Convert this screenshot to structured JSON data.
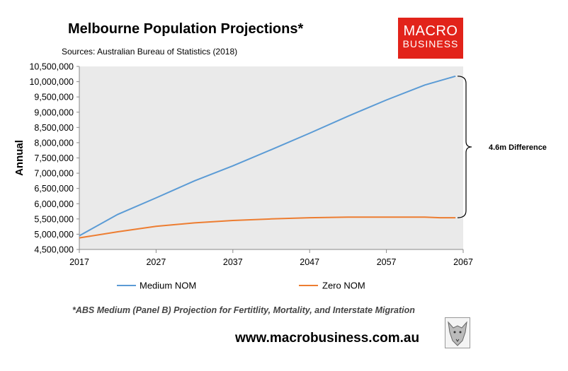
{
  "title": "Melbourne Population Projections*",
  "source": "Sources: Australian Bureau of Statistics (2018)",
  "logo": {
    "line1": "MACRO",
    "line2": "BUSINESS"
  },
  "footnote": "*ABS Medium (Panel B) Projection for Fertitlity, Mortality, and Interstate Migration",
  "url": "www.macrobusiness.com.au",
  "colors": {
    "medium": "#5b9bd5",
    "zero": "#ed7d31",
    "plot_bg": "#eaeaea",
    "logo_bg": "#e2231a"
  },
  "chart_data": {
    "type": "line",
    "ylabel": "Annual",
    "xlim": [
      2017,
      2067
    ],
    "ylim": [
      4500000,
      10500000
    ],
    "x_ticks": [
      "2017",
      "2027",
      "2037",
      "2047",
      "2057",
      "2067"
    ],
    "y_ticks": [
      "4,500,000",
      "5,000,000",
      "5,500,000",
      "6,000,000",
      "6,500,000",
      "7,000,000",
      "7,500,000",
      "8,000,000",
      "8,500,000",
      "9,000,000",
      "9,500,000",
      "10,000,000",
      "10,500,000"
    ],
    "legend_position": "bottom",
    "annotation": "4.6m Difference",
    "series": [
      {
        "name": "Medium NOM",
        "x": [
          2017,
          2022,
          2027,
          2032,
          2037,
          2042,
          2047,
          2052,
          2057,
          2062,
          2066
        ],
        "values": [
          4950000,
          5650000,
          6190000,
          6750000,
          7240000,
          7770000,
          8310000,
          8870000,
          9400000,
          9890000,
          10180000
        ]
      },
      {
        "name": "Zero NOM",
        "x": [
          2017,
          2022,
          2027,
          2032,
          2037,
          2042,
          2047,
          2052,
          2057,
          2062,
          2064,
          2066
        ],
        "values": [
          4880000,
          5080000,
          5260000,
          5370000,
          5450000,
          5500000,
          5540000,
          5560000,
          5560000,
          5560000,
          5540000,
          5540000
        ]
      }
    ]
  }
}
